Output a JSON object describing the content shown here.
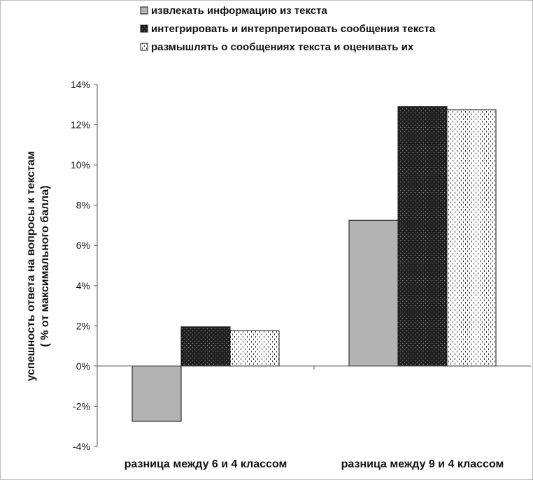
{
  "chart_data": {
    "type": "bar",
    "categories": [
      "разница между 6 и 4 классом",
      "разница между 9 и 4 классом"
    ],
    "series": [
      {
        "name": "извлекать информацию из текста",
        "values": [
          -2.75,
          7.25
        ],
        "color": "#b3b3b3",
        "pattern": "solid"
      },
      {
        "name": "интегрировать и интерпретировать сообщения текста",
        "values": [
          1.95,
          12.9
        ],
        "color": "#1e1e1e",
        "pattern": "dots"
      },
      {
        "name": "размышлять о сообщениях текста и оценивать их",
        "values": [
          1.75,
          12.75
        ],
        "color": "#ffffff",
        "pattern": "dashes"
      }
    ],
    "ylabel_line1": "успешность ответа на вопросы к текстам",
    "ylabel_line2": "( % от максимального балла)",
    "ylim": [
      -4,
      14
    ],
    "yticks": [
      -4,
      -2,
      0,
      2,
      4,
      6,
      8,
      10,
      12,
      14
    ],
    "ytick_labels": [
      "-4%",
      "-2%",
      "0%",
      "2%",
      "4%",
      "6%",
      "8%",
      "10%",
      "12%",
      "14%"
    ],
    "legend_position": "top",
    "grid": false
  }
}
